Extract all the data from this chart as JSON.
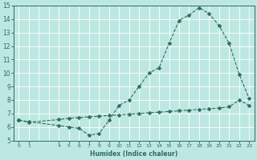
{
  "xlabel": "Humidex (Indice chaleur)",
  "xlim": [
    -0.5,
    23.5
  ],
  "ylim": [
    5,
    15
  ],
  "yticks": [
    5,
    6,
    7,
    8,
    9,
    10,
    11,
    12,
    13,
    14,
    15
  ],
  "xtick_positions": [
    0,
    1,
    4,
    5,
    6,
    7,
    8,
    9,
    10,
    11,
    12,
    13,
    14,
    15,
    16,
    17,
    18,
    19,
    20,
    21,
    22,
    23
  ],
  "xtick_labels": [
    "0",
    "1",
    "4",
    "5",
    "6",
    "7",
    "8",
    "9",
    "10",
    "11",
    "12",
    "13",
    "14",
    "15",
    "16",
    "17",
    "18",
    "19",
    "20",
    "21",
    "22",
    "23"
  ],
  "line_color": "#2e6b5e",
  "bg_color": "#bde8e2",
  "grid_color": "#ffffff",
  "curve1_x": [
    0,
    1,
    4,
    5,
    6,
    7,
    8,
    9,
    10,
    11,
    12,
    13,
    14,
    15,
    16,
    17,
    18,
    19,
    20,
    21,
    22,
    23
  ],
  "curve1_y": [
    6.5,
    6.4,
    6.1,
    6.0,
    5.9,
    5.4,
    5.5,
    6.5,
    7.6,
    8.0,
    9.0,
    10.0,
    10.4,
    12.2,
    13.9,
    14.3,
    14.85,
    14.4,
    13.5,
    12.2,
    9.9,
    8.1
  ],
  "curve2_x": [
    0,
    1,
    4,
    5,
    6,
    7,
    8,
    9,
    10,
    11,
    12,
    13,
    14,
    15,
    16,
    17,
    18,
    19,
    20,
    21,
    22,
    23
  ],
  "curve2_y": [
    6.5,
    6.35,
    6.55,
    6.65,
    6.7,
    6.75,
    6.8,
    6.85,
    6.9,
    6.95,
    7.0,
    7.05,
    7.1,
    7.15,
    7.2,
    7.25,
    7.3,
    7.35,
    7.4,
    7.5,
    8.0,
    7.6
  ],
  "markersize": 2.5,
  "linewidth": 0.8
}
